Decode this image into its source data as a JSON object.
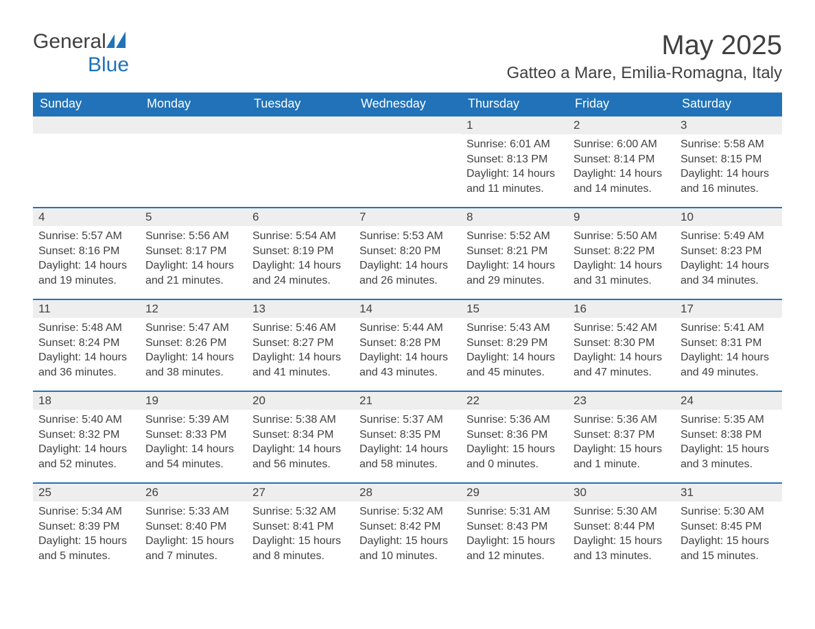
{
  "brand": {
    "word1": "General",
    "word2": "Blue"
  },
  "title": {
    "month": "May 2025",
    "location": "Gatteo a Mare, Emilia-Romagna, Italy"
  },
  "colors": {
    "header_bg": "#2172b8",
    "header_text": "#ffffff",
    "daynum_bg": "#eeeeee",
    "daynum_border": "#2172b8",
    "body_text": "#404040",
    "page_bg": "#ffffff"
  },
  "weekdays": [
    "Sunday",
    "Monday",
    "Tuesday",
    "Wednesday",
    "Thursday",
    "Friday",
    "Saturday"
  ],
  "calendar": {
    "start_weekday_index": 4,
    "num_days": 31,
    "rows": 5,
    "cols": 7
  },
  "days": {
    "1": {
      "sunrise": "6:01 AM",
      "sunset": "8:13 PM",
      "daylight": "14 hours and 11 minutes."
    },
    "2": {
      "sunrise": "6:00 AM",
      "sunset": "8:14 PM",
      "daylight": "14 hours and 14 minutes."
    },
    "3": {
      "sunrise": "5:58 AM",
      "sunset": "8:15 PM",
      "daylight": "14 hours and 16 minutes."
    },
    "4": {
      "sunrise": "5:57 AM",
      "sunset": "8:16 PM",
      "daylight": "14 hours and 19 minutes."
    },
    "5": {
      "sunrise": "5:56 AM",
      "sunset": "8:17 PM",
      "daylight": "14 hours and 21 minutes."
    },
    "6": {
      "sunrise": "5:54 AM",
      "sunset": "8:19 PM",
      "daylight": "14 hours and 24 minutes."
    },
    "7": {
      "sunrise": "5:53 AM",
      "sunset": "8:20 PM",
      "daylight": "14 hours and 26 minutes."
    },
    "8": {
      "sunrise": "5:52 AM",
      "sunset": "8:21 PM",
      "daylight": "14 hours and 29 minutes."
    },
    "9": {
      "sunrise": "5:50 AM",
      "sunset": "8:22 PM",
      "daylight": "14 hours and 31 minutes."
    },
    "10": {
      "sunrise": "5:49 AM",
      "sunset": "8:23 PM",
      "daylight": "14 hours and 34 minutes."
    },
    "11": {
      "sunrise": "5:48 AM",
      "sunset": "8:24 PM",
      "daylight": "14 hours and 36 minutes."
    },
    "12": {
      "sunrise": "5:47 AM",
      "sunset": "8:26 PM",
      "daylight": "14 hours and 38 minutes."
    },
    "13": {
      "sunrise": "5:46 AM",
      "sunset": "8:27 PM",
      "daylight": "14 hours and 41 minutes."
    },
    "14": {
      "sunrise": "5:44 AM",
      "sunset": "8:28 PM",
      "daylight": "14 hours and 43 minutes."
    },
    "15": {
      "sunrise": "5:43 AM",
      "sunset": "8:29 PM",
      "daylight": "14 hours and 45 minutes."
    },
    "16": {
      "sunrise": "5:42 AM",
      "sunset": "8:30 PM",
      "daylight": "14 hours and 47 minutes."
    },
    "17": {
      "sunrise": "5:41 AM",
      "sunset": "8:31 PM",
      "daylight": "14 hours and 49 minutes."
    },
    "18": {
      "sunrise": "5:40 AM",
      "sunset": "8:32 PM",
      "daylight": "14 hours and 52 minutes."
    },
    "19": {
      "sunrise": "5:39 AM",
      "sunset": "8:33 PM",
      "daylight": "14 hours and 54 minutes."
    },
    "20": {
      "sunrise": "5:38 AM",
      "sunset": "8:34 PM",
      "daylight": "14 hours and 56 minutes."
    },
    "21": {
      "sunrise": "5:37 AM",
      "sunset": "8:35 PM",
      "daylight": "14 hours and 58 minutes."
    },
    "22": {
      "sunrise": "5:36 AM",
      "sunset": "8:36 PM",
      "daylight": "15 hours and 0 minutes."
    },
    "23": {
      "sunrise": "5:36 AM",
      "sunset": "8:37 PM",
      "daylight": "15 hours and 1 minute."
    },
    "24": {
      "sunrise": "5:35 AM",
      "sunset": "8:38 PM",
      "daylight": "15 hours and 3 minutes."
    },
    "25": {
      "sunrise": "5:34 AM",
      "sunset": "8:39 PM",
      "daylight": "15 hours and 5 minutes."
    },
    "26": {
      "sunrise": "5:33 AM",
      "sunset": "8:40 PM",
      "daylight": "15 hours and 7 minutes."
    },
    "27": {
      "sunrise": "5:32 AM",
      "sunset": "8:41 PM",
      "daylight": "15 hours and 8 minutes."
    },
    "28": {
      "sunrise": "5:32 AM",
      "sunset": "8:42 PM",
      "daylight": "15 hours and 10 minutes."
    },
    "29": {
      "sunrise": "5:31 AM",
      "sunset": "8:43 PM",
      "daylight": "15 hours and 12 minutes."
    },
    "30": {
      "sunrise": "5:30 AM",
      "sunset": "8:44 PM",
      "daylight": "15 hours and 13 minutes."
    },
    "31": {
      "sunrise": "5:30 AM",
      "sunset": "8:45 PM",
      "daylight": "15 hours and 15 minutes."
    }
  },
  "labels": {
    "sunrise": "Sunrise: ",
    "sunset": "Sunset: ",
    "daylight": "Daylight: "
  }
}
